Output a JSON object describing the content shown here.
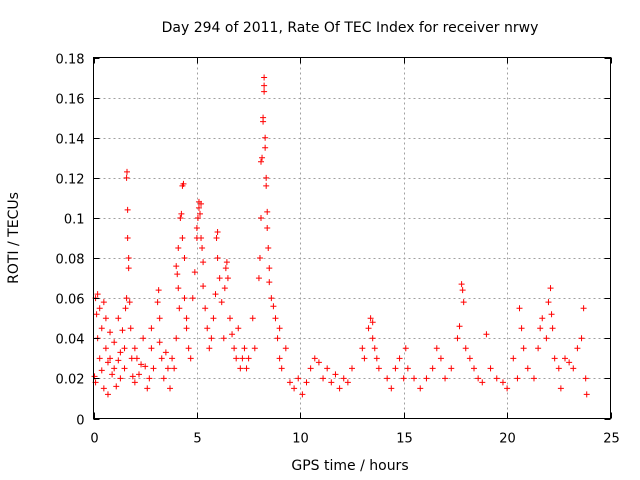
{
  "chart_data": {
    "type": "scatter",
    "title": "Day 294 of 2011, Rate Of TEC Index for receiver nrwy",
    "xlabel": "GPS time / hours",
    "ylabel": "ROTI / TECUs",
    "xlim": [
      0,
      25
    ],
    "ylim": [
      0,
      0.18
    ],
    "xticks": [
      0,
      5,
      10,
      15,
      20,
      25
    ],
    "xtick_labels": [
      "0",
      "5",
      "10",
      "15",
      "20",
      "25"
    ],
    "yticks": [
      0,
      0.02,
      0.04,
      0.06,
      0.08,
      0.1,
      0.12,
      0.14,
      0.16,
      0.18
    ],
    "ytick_labels": [
      "0",
      "0.02",
      "0.04",
      "0.06",
      "0.08",
      "0.1",
      "0.12",
      "0.14",
      "0.16",
      "0.18"
    ],
    "grid": true,
    "marker": "plus",
    "color": "#ff0000",
    "series": [
      {
        "name": "ROTI",
        "points": [
          [
            0.05,
            0.021
          ],
          [
            0.1,
            0.018
          ],
          [
            0.1,
            0.06
          ],
          [
            0.15,
            0.052
          ],
          [
            0.2,
            0.062
          ],
          [
            0.2,
            0.04
          ],
          [
            0.3,
            0.055
          ],
          [
            0.3,
            0.03
          ],
          [
            0.4,
            0.024
          ],
          [
            0.4,
            0.045
          ],
          [
            0.5,
            0.058
          ],
          [
            0.5,
            0.015
          ],
          [
            0.6,
            0.035
          ],
          [
            0.6,
            0.05
          ],
          [
            0.7,
            0.028
          ],
          [
            0.7,
            0.012
          ],
          [
            0.8,
            0.03
          ],
          [
            0.8,
            0.043
          ],
          [
            0.9,
            0.022
          ],
          [
            1.0,
            0.025
          ],
          [
            1.0,
            0.038
          ],
          [
            1.1,
            0.016
          ],
          [
            1.2,
            0.029
          ],
          [
            1.2,
            0.05
          ],
          [
            1.3,
            0.02
          ],
          [
            1.3,
            0.033
          ],
          [
            1.4,
            0.044
          ],
          [
            1.5,
            0.025
          ],
          [
            1.5,
            0.035
          ],
          [
            1.55,
            0.055
          ],
          [
            1.6,
            0.06
          ],
          [
            1.6,
            0.12
          ],
          [
            1.62,
            0.123
          ],
          [
            1.65,
            0.104
          ],
          [
            1.65,
            0.09
          ],
          [
            1.7,
            0.08
          ],
          [
            1.7,
            0.075
          ],
          [
            1.75,
            0.058
          ],
          [
            1.8,
            0.045
          ],
          [
            1.85,
            0.03
          ],
          [
            1.9,
            0.021
          ],
          [
            2.0,
            0.035
          ],
          [
            2.0,
            0.018
          ],
          [
            2.1,
            0.03
          ],
          [
            2.2,
            0.022
          ],
          [
            2.3,
            0.027
          ],
          [
            2.4,
            0.04
          ],
          [
            2.5,
            0.026
          ],
          [
            2.6,
            0.015
          ],
          [
            2.7,
            0.02
          ],
          [
            2.8,
            0.045
          ],
          [
            2.8,
            0.035
          ],
          [
            2.9,
            0.025
          ],
          [
            3.1,
            0.058
          ],
          [
            3.15,
            0.064
          ],
          [
            3.2,
            0.05
          ],
          [
            3.2,
            0.038
          ],
          [
            3.3,
            0.03
          ],
          [
            3.4,
            0.02
          ],
          [
            3.5,
            0.033
          ],
          [
            3.6,
            0.025
          ],
          [
            3.7,
            0.015
          ],
          [
            3.8,
            0.03
          ],
          [
            3.9,
            0.025
          ],
          [
            4.0,
            0.04
          ],
          [
            4.0,
            0.076
          ],
          [
            4.05,
            0.072
          ],
          [
            4.1,
            0.085
          ],
          [
            4.1,
            0.065
          ],
          [
            4.15,
            0.055
          ],
          [
            4.2,
            0.1
          ],
          [
            4.25,
            0.102
          ],
          [
            4.3,
            0.116
          ],
          [
            4.35,
            0.117
          ],
          [
            4.3,
            0.09
          ],
          [
            4.4,
            0.08
          ],
          [
            4.4,
            0.06
          ],
          [
            4.5,
            0.05
          ],
          [
            4.5,
            0.045
          ],
          [
            4.6,
            0.035
          ],
          [
            4.7,
            0.03
          ],
          [
            4.8,
            0.06
          ],
          [
            4.9,
            0.073
          ],
          [
            5.0,
            0.09
          ],
          [
            5.0,
            0.095
          ],
          [
            5.05,
            0.1
          ],
          [
            5.1,
            0.105
          ],
          [
            5.1,
            0.108
          ],
          [
            5.15,
            0.102
          ],
          [
            5.2,
            0.107
          ],
          [
            5.2,
            0.09
          ],
          [
            5.25,
            0.085
          ],
          [
            5.3,
            0.078
          ],
          [
            5.3,
            0.066
          ],
          [
            5.4,
            0.055
          ],
          [
            5.5,
            0.045
          ],
          [
            5.6,
            0.035
          ],
          [
            5.7,
            0.04
          ],
          [
            5.8,
            0.05
          ],
          [
            5.9,
            0.062
          ],
          [
            5.95,
            0.09
          ],
          [
            6.0,
            0.093
          ],
          [
            6.0,
            0.08
          ],
          [
            6.1,
            0.07
          ],
          [
            6.2,
            0.058
          ],
          [
            6.3,
            0.04
          ],
          [
            6.35,
            0.065
          ],
          [
            6.4,
            0.075
          ],
          [
            6.45,
            0.078
          ],
          [
            6.5,
            0.07
          ],
          [
            6.6,
            0.05
          ],
          [
            6.7,
            0.042
          ],
          [
            6.8,
            0.035
          ],
          [
            6.9,
            0.03
          ],
          [
            7.0,
            0.045
          ],
          [
            7.1,
            0.025
          ],
          [
            7.2,
            0.03
          ],
          [
            7.3,
            0.035
          ],
          [
            7.4,
            0.025
          ],
          [
            7.5,
            0.03
          ],
          [
            7.7,
            0.05
          ],
          [
            7.8,
            0.035
          ],
          [
            8.0,
            0.07
          ],
          [
            8.05,
            0.08
          ],
          [
            8.1,
            0.1
          ],
          [
            8.1,
            0.128
          ],
          [
            8.15,
            0.13
          ],
          [
            8.2,
            0.148
          ],
          [
            8.2,
            0.15
          ],
          [
            8.25,
            0.163
          ],
          [
            8.25,
            0.166
          ],
          [
            8.25,
            0.17
          ],
          [
            8.3,
            0.14
          ],
          [
            8.3,
            0.135
          ],
          [
            8.35,
            0.12
          ],
          [
            8.35,
            0.116
          ],
          [
            8.4,
            0.103
          ],
          [
            8.4,
            0.095
          ],
          [
            8.45,
            0.085
          ],
          [
            8.5,
            0.075
          ],
          [
            8.5,
            0.068
          ],
          [
            8.6,
            0.06
          ],
          [
            8.7,
            0.056
          ],
          [
            8.8,
            0.05
          ],
          [
            8.9,
            0.04
          ],
          [
            9.0,
            0.03
          ],
          [
            9.0,
            0.045
          ],
          [
            9.1,
            0.025
          ],
          [
            9.3,
            0.035
          ],
          [
            9.5,
            0.018
          ],
          [
            9.7,
            0.015
          ],
          [
            9.9,
            0.02
          ],
          [
            10.1,
            0.012
          ],
          [
            10.3,
            0.018
          ],
          [
            10.5,
            0.025
          ],
          [
            10.7,
            0.03
          ],
          [
            10.9,
            0.028
          ],
          [
            11.1,
            0.02
          ],
          [
            11.3,
            0.025
          ],
          [
            11.5,
            0.018
          ],
          [
            11.7,
            0.022
          ],
          [
            11.9,
            0.015
          ],
          [
            12.1,
            0.02
          ],
          [
            12.3,
            0.018
          ],
          [
            12.5,
            0.025
          ],
          [
            13.0,
            0.035
          ],
          [
            13.1,
            0.03
          ],
          [
            13.3,
            0.045
          ],
          [
            13.4,
            0.05
          ],
          [
            13.5,
            0.048
          ],
          [
            13.5,
            0.04
          ],
          [
            13.6,
            0.035
          ],
          [
            13.7,
            0.03
          ],
          [
            13.8,
            0.025
          ],
          [
            14.2,
            0.02
          ],
          [
            14.4,
            0.015
          ],
          [
            14.6,
            0.025
          ],
          [
            14.8,
            0.03
          ],
          [
            15.0,
            0.02
          ],
          [
            15.1,
            0.035
          ],
          [
            15.2,
            0.025
          ],
          [
            15.5,
            0.02
          ],
          [
            15.8,
            0.015
          ],
          [
            16.1,
            0.02
          ],
          [
            16.4,
            0.025
          ],
          [
            16.6,
            0.035
          ],
          [
            16.8,
            0.03
          ],
          [
            17.0,
            0.02
          ],
          [
            17.3,
            0.025
          ],
          [
            17.6,
            0.04
          ],
          [
            17.7,
            0.046
          ],
          [
            17.8,
            0.067
          ],
          [
            17.85,
            0.064
          ],
          [
            17.9,
            0.058
          ],
          [
            18.0,
            0.035
          ],
          [
            18.2,
            0.03
          ],
          [
            18.4,
            0.025
          ],
          [
            18.6,
            0.02
          ],
          [
            18.8,
            0.018
          ],
          [
            19.0,
            0.042
          ],
          [
            19.2,
            0.025
          ],
          [
            19.5,
            0.02
          ],
          [
            19.8,
            0.018
          ],
          [
            20.0,
            0.015
          ],
          [
            20.3,
            0.03
          ],
          [
            20.5,
            0.02
          ],
          [
            20.6,
            0.055
          ],
          [
            20.7,
            0.045
          ],
          [
            20.8,
            0.035
          ],
          [
            21.0,
            0.025
          ],
          [
            21.3,
            0.02
          ],
          [
            21.5,
            0.035
          ],
          [
            21.6,
            0.045
          ],
          [
            21.7,
            0.05
          ],
          [
            21.9,
            0.04
          ],
          [
            22.0,
            0.058
          ],
          [
            22.1,
            0.065
          ],
          [
            22.15,
            0.052
          ],
          [
            22.2,
            0.045
          ],
          [
            22.3,
            0.03
          ],
          [
            22.5,
            0.025
          ],
          [
            22.6,
            0.015
          ],
          [
            22.8,
            0.03
          ],
          [
            23.0,
            0.028
          ],
          [
            23.2,
            0.025
          ],
          [
            23.4,
            0.035
          ],
          [
            23.6,
            0.04
          ],
          [
            23.7,
            0.055
          ],
          [
            23.8,
            0.02
          ],
          [
            23.85,
            0.012
          ]
        ]
      }
    ]
  }
}
